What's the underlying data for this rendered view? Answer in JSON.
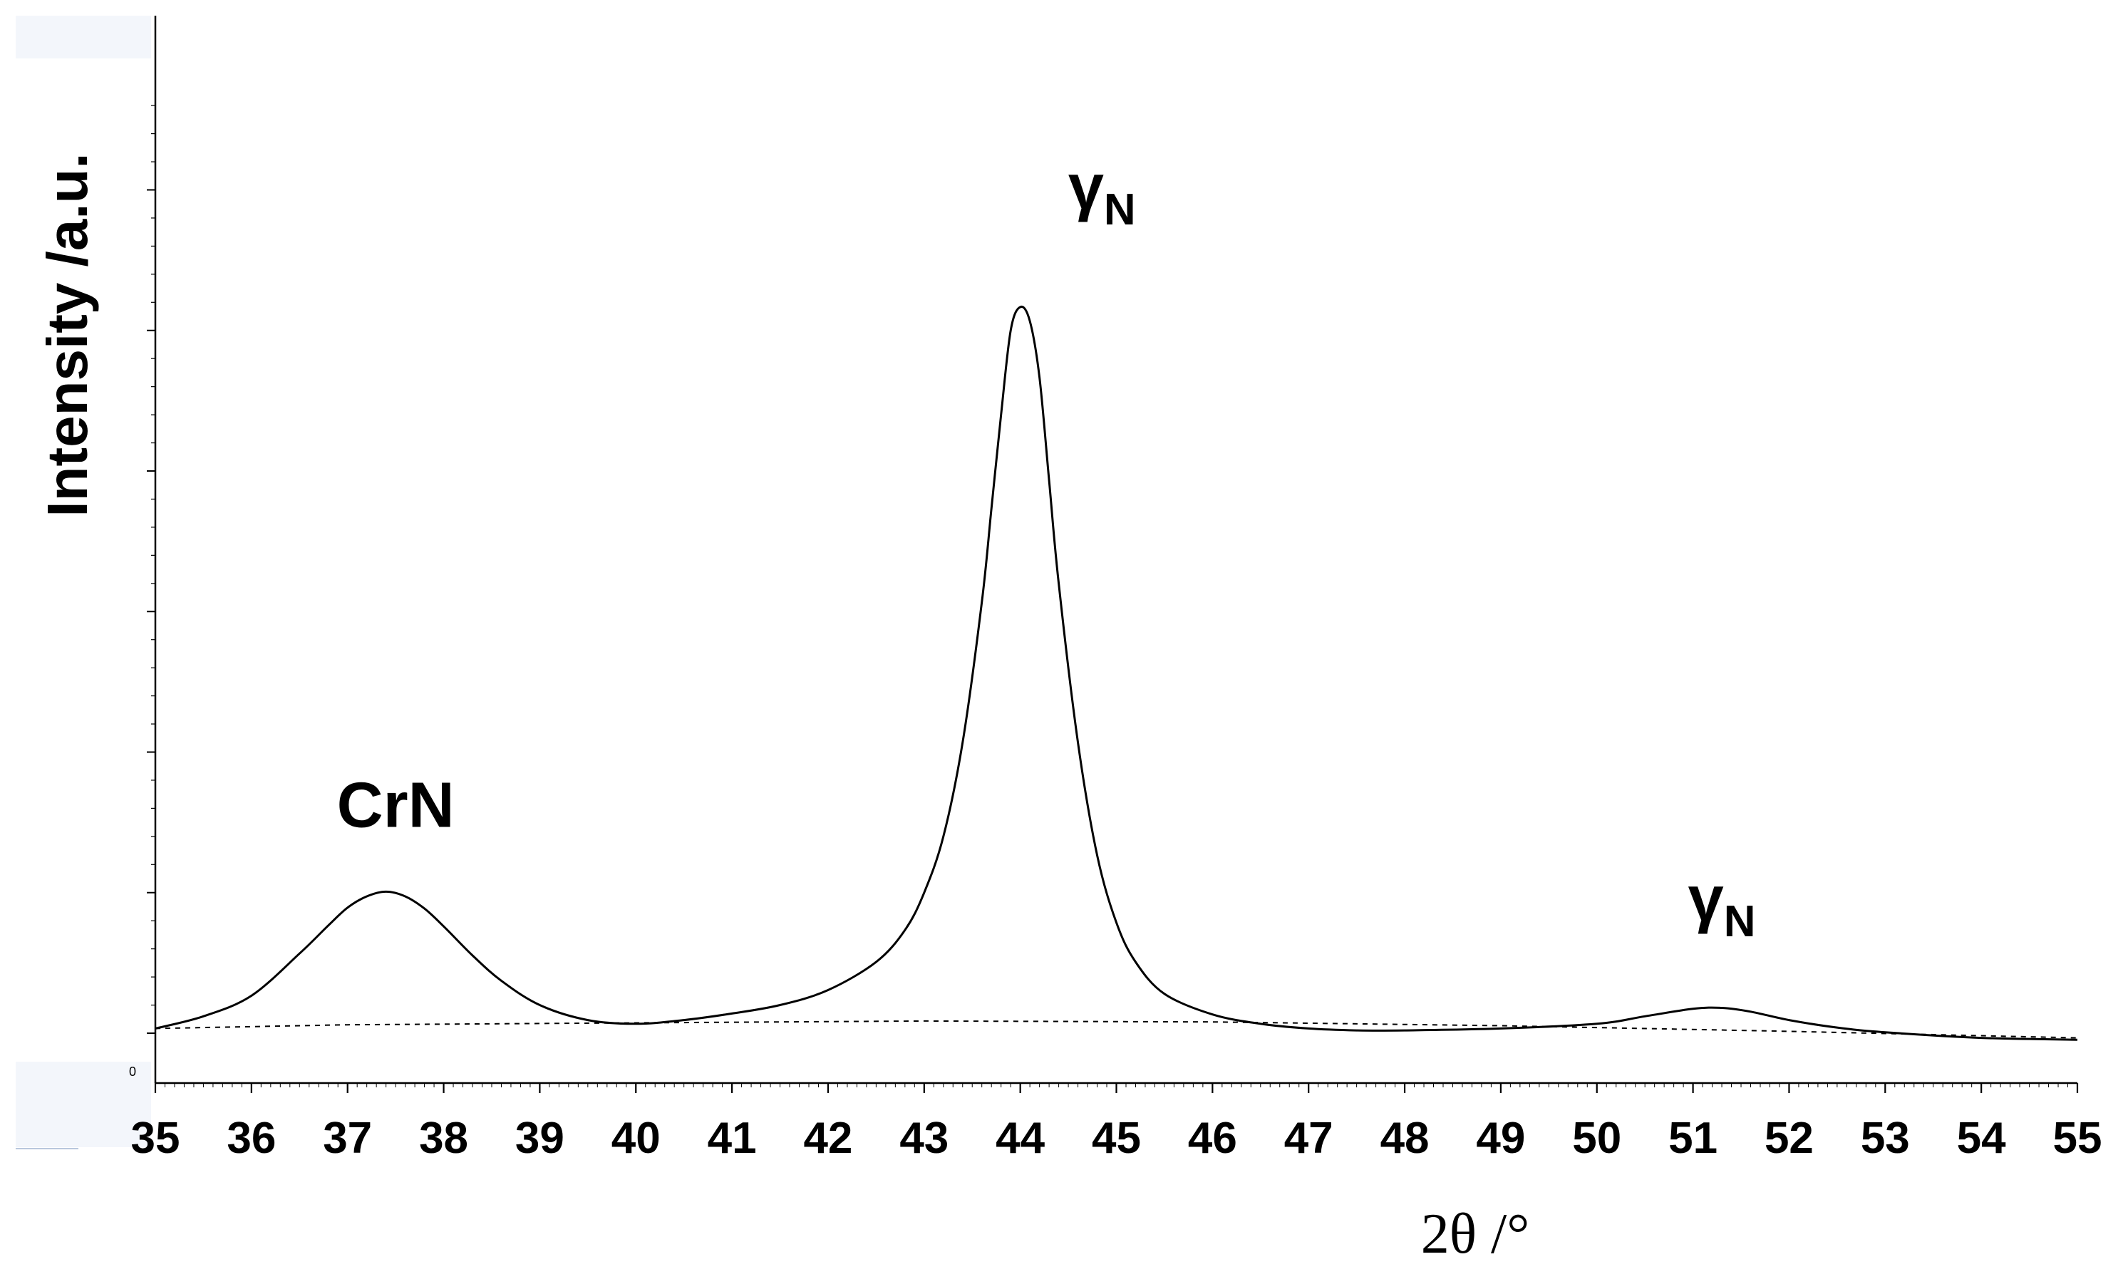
{
  "chart_data": {
    "type": "line",
    "ylabel": "Intensity /a.u.",
    "xlabel": "2θ /°",
    "xlim": [
      35,
      55
    ],
    "ylim": [
      0,
      100
    ],
    "x_ticks": [
      "35",
      "36",
      "37",
      "38",
      "39",
      "40",
      "41",
      "42",
      "43",
      "44",
      "45",
      "46",
      "47",
      "48",
      "49",
      "50",
      "51",
      "52",
      "53",
      "54",
      "55"
    ],
    "y_tick_values": [
      0,
      15,
      30,
      45,
      60,
      75,
      90
    ],
    "origin_label": "0",
    "grid": false,
    "legend": "none",
    "annotations": [
      {
        "label": "CrN",
        "sub": "",
        "x": 37.5,
        "y": 22
      },
      {
        "label": "γ",
        "sub": "N",
        "x": 44.85,
        "y": 88
      },
      {
        "label": "γ",
        "sub": "N",
        "x": 51.3,
        "y": 12
      }
    ],
    "series": [
      {
        "style": "solid",
        "color": "#000000",
        "x": [
          35.0,
          35.5,
          36.0,
          36.5,
          36.8,
          37.0,
          37.2,
          37.4,
          37.6,
          37.8,
          38.0,
          38.3,
          38.6,
          39.0,
          39.5,
          40.0,
          40.5,
          41.0,
          41.5,
          42.0,
          42.5,
          42.8,
          43.0,
          43.2,
          43.4,
          43.6,
          43.7,
          43.8,
          43.9,
          44.0,
          44.1,
          44.2,
          44.3,
          44.4,
          44.6,
          44.8,
          45.0,
          45.2,
          45.5,
          46.0,
          46.5,
          47.0,
          47.5,
          48.0,
          49.0,
          50.0,
          50.5,
          51.0,
          51.3,
          51.6,
          52.0,
          52.5,
          53.0,
          54.0,
          55.0
        ],
        "y": [
          0.5,
          1.8,
          4.0,
          8.5,
          11.5,
          13.4,
          14.6,
          15.1,
          14.6,
          13.3,
          11.4,
          8.3,
          5.6,
          3.0,
          1.4,
          1.0,
          1.4,
          2.1,
          3.0,
          4.6,
          7.6,
          11.0,
          15.0,
          21.0,
          31.0,
          46.0,
          56.0,
          66.0,
          75.0,
          77.5,
          76.0,
          70.0,
          59.0,
          48.0,
          31.0,
          19.0,
          11.8,
          7.6,
          4.2,
          2.0,
          1.0,
          0.5,
          0.3,
          0.3,
          0.5,
          1.0,
          1.8,
          2.6,
          2.7,
          2.3,
          1.4,
          0.6,
          0.1,
          -0.5,
          -0.7
        ]
      },
      {
        "style": "dashed",
        "color": "#000000",
        "x": [
          35,
          37,
          40,
          43,
          46,
          49,
          52,
          55
        ],
        "y": [
          0.5,
          0.9,
          1.1,
          1.3,
          1.2,
          0.8,
          0.2,
          -0.5
        ]
      }
    ]
  }
}
